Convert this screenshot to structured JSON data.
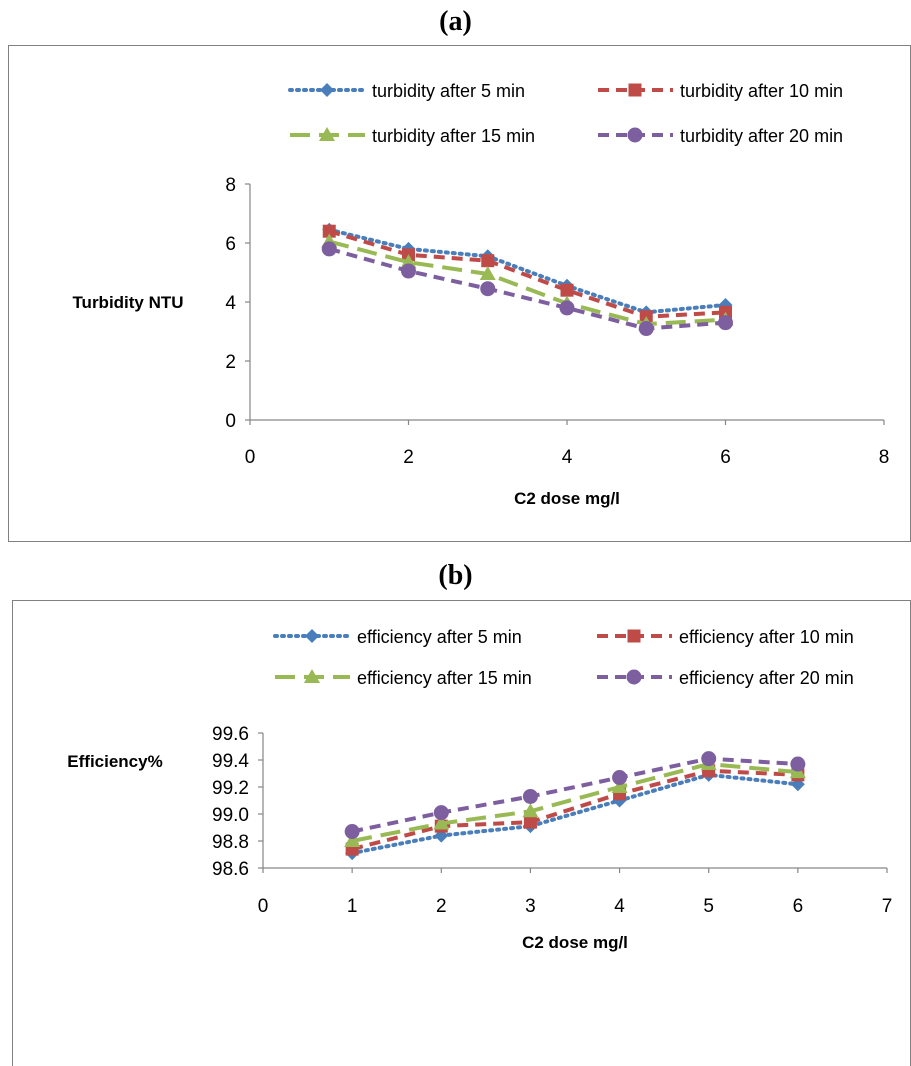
{
  "chart_data": [
    {
      "type": "line",
      "panel_label": "(a)",
      "xlabel": "C2 dose mg/l",
      "ylabel": "Turbidity NTU",
      "xlim": [
        0,
        8
      ],
      "ylim": [
        0,
        8
      ],
      "xticks": [
        0,
        2,
        4,
        6,
        8
      ],
      "yticks": [
        0,
        2,
        4,
        6,
        8
      ],
      "tick_decimals": 0,
      "grid": false,
      "legend_position": "top",
      "x": [
        1,
        2,
        3,
        4,
        5,
        6
      ],
      "series": [
        {
          "name": "turbidity after 5 min",
          "values": [
            6.45,
            5.8,
            5.55,
            4.55,
            3.65,
            3.9
          ],
          "color": "#4A7EBB",
          "dash": "dotted",
          "marker": "diamond"
        },
        {
          "name": "turbidity after 10 min",
          "values": [
            6.4,
            5.6,
            5.4,
            4.4,
            3.5,
            3.65
          ],
          "color": "#BE4B48",
          "dash": "dashed",
          "marker": "square"
        },
        {
          "name": "turbidity after 15 min",
          "values": [
            6.05,
            5.35,
            4.95,
            3.95,
            3.25,
            3.4
          ],
          "color": "#98B954",
          "dash": "longdash",
          "marker": "triangle"
        },
        {
          "name": "turbidity after 20 min",
          "values": [
            5.8,
            5.05,
            4.45,
            3.8,
            3.1,
            3.3
          ],
          "color": "#7D5FA0",
          "dash": "dashed",
          "marker": "circle"
        }
      ]
    },
    {
      "type": "line",
      "panel_label": "(b)",
      "xlabel": "C2 dose mg/l",
      "ylabel": "Efficiency%",
      "xlim": [
        0,
        7
      ],
      "ylim": [
        98.6,
        99.6
      ],
      "xticks": [
        0,
        1,
        2,
        3,
        4,
        5,
        6,
        7
      ],
      "yticks": [
        98.6,
        98.8,
        99.0,
        99.2,
        99.4,
        99.6
      ],
      "tick_decimals": 1,
      "grid": false,
      "legend_position": "top",
      "x": [
        1,
        2,
        3,
        4,
        5,
        6
      ],
      "series": [
        {
          "name": "efficiency after 5 min",
          "values": [
            98.71,
            98.84,
            98.91,
            99.1,
            99.29,
            99.22
          ],
          "color": "#4A7EBB",
          "dash": "dotted",
          "marker": "diamond"
        },
        {
          "name": "efficiency after 10 min",
          "values": [
            98.74,
            98.91,
            98.94,
            99.15,
            99.32,
            99.29
          ],
          "color": "#BE4B48",
          "dash": "dashed",
          "marker": "square"
        },
        {
          "name": "efficiency after 15 min",
          "values": [
            98.8,
            98.93,
            99.02,
            99.2,
            99.37,
            99.31
          ],
          "color": "#98B954",
          "dash": "longdash",
          "marker": "triangle"
        },
        {
          "name": "efficiency after 20 min",
          "values": [
            98.87,
            99.01,
            99.13,
            99.27,
            99.41,
            99.37
          ],
          "color": "#7D5FA0",
          "dash": "dashed",
          "marker": "circle"
        }
      ]
    }
  ]
}
